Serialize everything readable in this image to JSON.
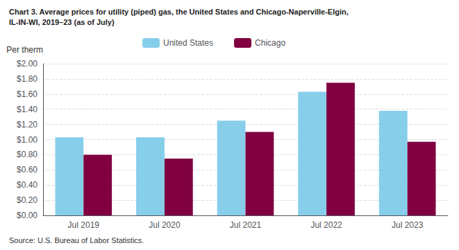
{
  "chart_data": {
    "type": "bar",
    "title": "Chart 3. Average prices for utility (piped) gas, the United States and Chicago-Naperville-Elgin,",
    "subtitle": "IL-IN-WI, 2019–23 (as of July)",
    "ylabel": "Per therm",
    "annotations": [
      "Source: U.S. Bureau of Labor Statistics."
    ],
    "categories": [
      "Jul 2019",
      "Jul 2020",
      "Jul 2021",
      "Jul 2022",
      "Jul 2023"
    ],
    "series": [
      {
        "name": "United States",
        "color": "#87CEEB",
        "values": [
          1.03,
          1.03,
          1.25,
          1.63,
          1.38
        ]
      },
      {
        "name": "Chicago",
        "color": "#800040",
        "values": [
          0.8,
          0.75,
          1.1,
          1.75,
          0.97
        ]
      }
    ],
    "ylim": [
      0,
      2.0
    ],
    "yticks": [
      {
        "value": 0.0,
        "label": "$0.00"
      },
      {
        "value": 0.2,
        "label": "$0.20"
      },
      {
        "value": 0.4,
        "label": "$0.40"
      },
      {
        "value": 0.6,
        "label": "$0.60"
      },
      {
        "value": 0.8,
        "label": "$0.80"
      },
      {
        "value": 1.0,
        "label": "$1.00"
      },
      {
        "value": 1.2,
        "label": "$1.20"
      },
      {
        "value": 1.4,
        "label": "$1.40"
      },
      {
        "value": 1.6,
        "label": "$1.60"
      },
      {
        "value": 1.8,
        "label": "$1.80"
      },
      {
        "value": 2.0,
        "label": "$2.00"
      }
    ],
    "grid": true,
    "legend": "top"
  }
}
